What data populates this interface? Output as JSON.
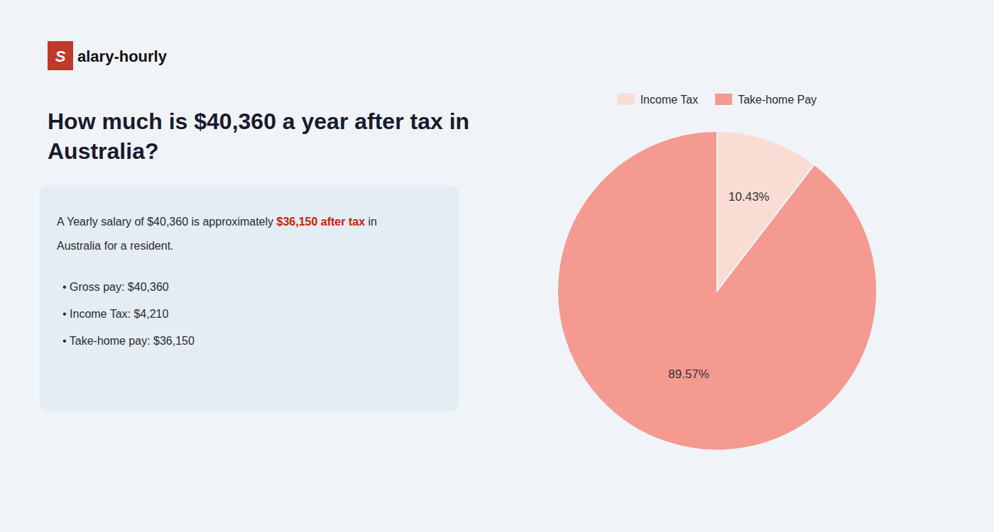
{
  "chart_data": {
    "type": "pie",
    "title": "How much is $40,360 a year after tax in\nAustralia?",
    "annotations": [
      "S",
      "alary-hourly",
      "A Yearly salary of $40,360 is approximately ",
      "$36,150 after tax",
      " in",
      "Australia for a resident.",
      "•  Gross pay: $40,360",
      "•  Income Tax: $4,210",
      "•  Take-home pay: $36,150"
    ],
    "categories": [
      "Income Tax",
      "Take-home Pay"
    ],
    "values": [
      10.43,
      89.57
    ],
    "value_labels": [
      "10.43%",
      "89.57%"
    ],
    "colors": [
      "#f9ddd4",
      "#f49a90"
    ],
    "data_labels": true,
    "legend": "top"
  }
}
